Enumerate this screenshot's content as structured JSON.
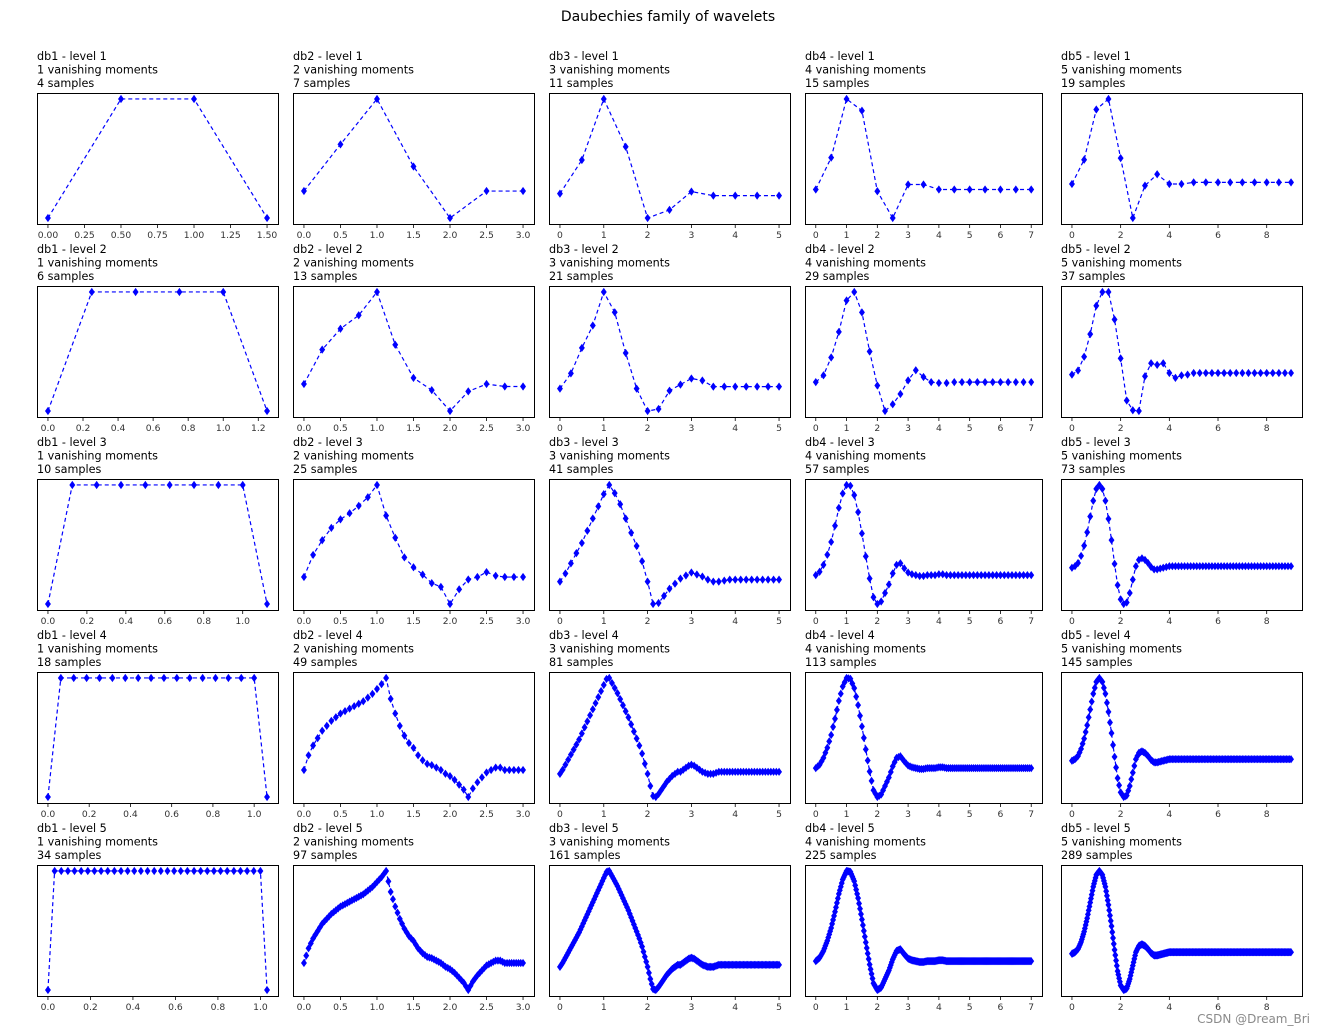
{
  "title": "Daubechies family of wavelets",
  "watermark": "CSDN @Dream_Bri",
  "colors": {
    "series": "#0000ff",
    "frame": "#000000"
  },
  "chart_data": {
    "type": "line",
    "marker": "diamond",
    "linestyle": "dashed",
    "grid": false,
    "rows": 5,
    "cols": 5,
    "subplots": [
      {
        "name": "db1",
        "level": 1,
        "title_lines": [
          "db1 - level 1",
          "1 vanishing moments",
          "4 samples"
        ],
        "samples": 4,
        "xticks": [
          "0.00",
          "0.25",
          "0.50",
          "0.75",
          "1.00",
          "1.25",
          "1.50"
        ],
        "xlim": [
          -0.08,
          1.58
        ],
        "y": [
          0,
          1,
          1,
          0
        ]
      },
      {
        "name": "db2",
        "level": 1,
        "title_lines": [
          "db2 - level 1",
          "2 vanishing moments",
          "7 samples"
        ],
        "samples": 7,
        "xticks": [
          "0.0",
          "0.5",
          "1.0",
          "1.5",
          "2.0",
          "2.5",
          "3.0"
        ],
        "xlim": [
          -0.15,
          3.15
        ],
        "y": [
          0.1,
          0.48,
          0.85,
          0.3,
          -0.12,
          0.1,
          0.1
        ]
      },
      {
        "name": "db3",
        "level": 1,
        "title_lines": [
          "db3 - level 1",
          "3 vanishing moments",
          "11 samples"
        ],
        "samples": 11,
        "xticks": [
          "0",
          "1",
          "2",
          "3",
          "4",
          "5"
        ],
        "xlim": [
          -0.25,
          5.25
        ],
        "y": [
          0.12,
          0.45,
          1.05,
          0.58,
          -0.12,
          -0.04,
          0.14,
          0.1,
          0.1,
          0.1,
          0.1
        ]
      },
      {
        "name": "db4",
        "level": 1,
        "title_lines": [
          "db4 - level 1",
          "4 vanishing moments",
          "15 samples"
        ],
        "samples": 15,
        "xticks": [
          "0",
          "1",
          "2",
          "3",
          "4",
          "5",
          "6",
          "7"
        ],
        "xlim": [
          -0.35,
          7.35
        ],
        "y": [
          0.06,
          0.44,
          1.14,
          1.0,
          0.04,
          -0.28,
          0.12,
          0.12,
          0.06,
          0.06,
          0.06,
          0.06,
          0.06,
          0.06,
          0.06
        ]
      },
      {
        "name": "db5",
        "level": 1,
        "title_lines": [
          "db5 - level 1",
          "5 vanishing moments",
          "19 samples"
        ],
        "samples": 19,
        "xticks": [
          "0",
          "2",
          "4",
          "6",
          "8"
        ],
        "xlim": [
          -0.45,
          9.45
        ],
        "y": [
          0.1,
          0.4,
          1.02,
          1.15,
          0.42,
          -0.32,
          0.08,
          0.22,
          0.1,
          0.1,
          0.12,
          0.12,
          0.12,
          0.12,
          0.12,
          0.12,
          0.12,
          0.12,
          0.12
        ]
      },
      {
        "name": "db1",
        "level": 2,
        "title_lines": [
          "db1 - level 2",
          "1 vanishing moments",
          "6 samples"
        ],
        "samples": 6,
        "xticks": [
          "0.0",
          "0.2",
          "0.4",
          "0.6",
          "0.8",
          "1.0",
          "1.2"
        ],
        "xlim": [
          -0.06,
          1.31
        ],
        "y": [
          0,
          1,
          1,
          1,
          1,
          0
        ]
      },
      {
        "name": "db2",
        "level": 2,
        "title_lines": [
          "db2 - level 2",
          "2 vanishing moments",
          "13 samples"
        ],
        "samples": 13,
        "xticks": [
          "0.0",
          "0.5",
          "1.0",
          "1.5",
          "2.0",
          "2.5",
          "3.0"
        ],
        "xlim": [
          -0.15,
          3.15
        ],
        "y": [
          0.1,
          0.38,
          0.55,
          0.66,
          0.85,
          0.42,
          0.15,
          0.05,
          -0.12,
          0.04,
          0.1,
          0.08,
          0.08
        ]
      },
      {
        "name": "db3",
        "level": 2,
        "title_lines": [
          "db3 - level 2",
          "3 vanishing moments",
          "21 samples"
        ],
        "samples": 21,
        "xticks": [
          "0",
          "1",
          "2",
          "3",
          "4",
          "5"
        ],
        "xlim": [
          -0.25,
          5.25
        ],
        "y": [
          0.1,
          0.25,
          0.5,
          0.72,
          1.05,
          0.85,
          0.45,
          0.1,
          -0.12,
          -0.1,
          0.08,
          0.14,
          0.2,
          0.18,
          0.12,
          0.12,
          0.12,
          0.12,
          0.12,
          0.12,
          0.12
        ]
      },
      {
        "name": "db4",
        "level": 2,
        "title_lines": [
          "db4 - level 2",
          "4 vanishing moments",
          "29 samples"
        ],
        "samples": 29,
        "xticks": [
          "0",
          "1",
          "2",
          "3",
          "4",
          "5",
          "6",
          "7"
        ],
        "xlim": [
          -0.35,
          7.35
        ],
        "y": [
          0.06,
          0.14,
          0.35,
          0.65,
          1.02,
          1.12,
          0.88,
          0.42,
          0.02,
          -0.28,
          -0.2,
          -0.08,
          0.08,
          0.2,
          0.12,
          0.06,
          0.05,
          0.05,
          0.06,
          0.06,
          0.06,
          0.06,
          0.06,
          0.06,
          0.06,
          0.06,
          0.06,
          0.06,
          0.06
        ]
      },
      {
        "name": "db5",
        "level": 2,
        "title_lines": [
          "db5 - level 2",
          "5 vanishing moments",
          "37 samples"
        ],
        "samples": 37,
        "xticks": [
          "0",
          "2",
          "4",
          "6",
          "8"
        ],
        "xlim": [
          -0.45,
          9.45
        ],
        "y": [
          0.1,
          0.15,
          0.32,
          0.6,
          0.95,
          1.12,
          1.12,
          0.78,
          0.3,
          -0.22,
          -0.34,
          -0.35,
          0.08,
          0.24,
          0.22,
          0.24,
          0.12,
          0.06,
          0.09,
          0.1,
          0.12,
          0.12,
          0.12,
          0.12,
          0.12,
          0.12,
          0.12,
          0.12,
          0.12,
          0.12,
          0.12,
          0.12,
          0.12,
          0.12,
          0.12,
          0.12,
          0.12
        ]
      },
      {
        "name": "db1",
        "level": 3,
        "title_lines": [
          "db1 - level 3",
          "1 vanishing moments",
          "10 samples"
        ],
        "samples": 10,
        "xticks": [
          "0.0",
          "0.2",
          "0.4",
          "0.6",
          "0.8",
          "1.0"
        ],
        "xlim": [
          -0.06,
          1.19
        ],
        "y": [
          0,
          1,
          1,
          1,
          1,
          1,
          1,
          1,
          1,
          0
        ]
      },
      {
        "name": "db2",
        "level": 3,
        "title_lines": [
          "db2 - level 3",
          "2 vanishing moments",
          "25 samples"
        ],
        "samples": 25,
        "xticks": [
          "0.0",
          "0.5",
          "1.0",
          "1.5",
          "2.0",
          "2.5",
          "3.0"
        ],
        "xlim": [
          -0.15,
          3.15
        ],
        "y": [
          0.1,
          0.28,
          0.4,
          0.5,
          0.57,
          0.62,
          0.68,
          0.75,
          0.85,
          0.6,
          0.42,
          0.26,
          0.18,
          0.12,
          0.05,
          0.02,
          -0.12,
          0.0,
          0.08,
          0.1,
          0.14,
          0.11,
          0.1,
          0.1,
          0.1
        ]
      },
      {
        "name": "db3",
        "level": 3,
        "title_lines": [
          "db3 - level 3",
          "3 vanishing moments",
          "41 samples"
        ],
        "samples": 41,
        "xticks": [
          "0",
          "1",
          "2",
          "3",
          "4",
          "5"
        ],
        "xlim": [
          -0.25,
          5.25
        ],
        "y": [
          0.1,
          0.18,
          0.28,
          0.38,
          0.48,
          0.6,
          0.72,
          0.84,
          0.96,
          1.05,
          0.97,
          0.86,
          0.72,
          0.58,
          0.45,
          0.3,
          0.1,
          -0.12,
          -0.11,
          -0.04,
          0.03,
          0.08,
          0.13,
          0.16,
          0.19,
          0.17,
          0.15,
          0.12,
          0.1,
          0.1,
          0.11,
          0.12,
          0.12,
          0.12,
          0.12,
          0.12,
          0.12,
          0.12,
          0.12,
          0.12,
          0.12
        ]
      },
      {
        "name": "db4",
        "level": 3,
        "title_lines": [
          "db4 - level 3",
          "4 vanishing moments",
          "57 samples"
        ],
        "samples": 57,
        "xticks": [
          "0",
          "1",
          "2",
          "3",
          "4",
          "5",
          "6",
          "7"
        ],
        "xlim": [
          -0.35,
          7.35
        ],
        "y": [
          0.06,
          0.1,
          0.18,
          0.3,
          0.45,
          0.64,
          0.85,
          1.02,
          1.12,
          1.11,
          1.0,
          0.8,
          0.55,
          0.28,
          0.02,
          -0.2,
          -0.28,
          -0.25,
          -0.15,
          -0.05,
          0.08,
          0.18,
          0.2,
          0.14,
          0.09,
          0.07,
          0.06,
          0.05,
          0.05,
          0.06,
          0.06,
          0.06,
          0.07,
          0.07,
          0.06,
          0.06,
          0.06,
          0.06,
          0.06,
          0.06,
          0.06,
          0.06,
          0.06,
          0.06,
          0.06,
          0.06,
          0.06,
          0.06,
          0.06,
          0.06,
          0.06,
          0.06,
          0.06,
          0.06,
          0.06,
          0.06,
          0.06
        ]
      },
      {
        "name": "db5",
        "level": 3,
        "title_lines": [
          "db5 - level 3",
          "5 vanishing moments",
          "73 samples"
        ],
        "samples": 73,
        "xticks": [
          "0",
          "2",
          "4",
          "6",
          "8"
        ],
        "xlim": [
          -0.45,
          9.45
        ],
        "y": [
          0.1,
          0.12,
          0.16,
          0.25,
          0.38,
          0.55,
          0.75,
          0.95,
          1.1,
          1.15,
          1.1,
          0.95,
          0.72,
          0.45,
          0.15,
          -0.12,
          -0.3,
          -0.36,
          -0.34,
          -0.22,
          -0.05,
          0.12,
          0.2,
          0.22,
          0.2,
          0.16,
          0.11,
          0.08,
          0.08,
          0.09,
          0.1,
          0.11,
          0.12,
          0.12,
          0.12,
          0.12,
          0.12,
          0.12,
          0.12,
          0.12,
          0.12,
          0.12,
          0.12,
          0.12,
          0.12,
          0.12,
          0.12,
          0.12,
          0.12,
          0.12,
          0.12,
          0.12,
          0.12,
          0.12,
          0.12,
          0.12,
          0.12,
          0.12,
          0.12,
          0.12,
          0.12,
          0.12,
          0.12,
          0.12,
          0.12,
          0.12,
          0.12,
          0.12,
          0.12,
          0.12,
          0.12,
          0.12,
          0.12
        ]
      },
      {
        "name": "db1",
        "level": 4,
        "title_lines": [
          "db1 - level 4",
          "1 vanishing moments",
          "18 samples"
        ],
        "samples": 18,
        "xticks": [
          "0.0",
          "0.2",
          "0.4",
          "0.6",
          "0.8",
          "1.0"
        ],
        "xlim": [
          -0.05,
          1.1
        ],
        "y": [
          0,
          1,
          1,
          1,
          1,
          1,
          1,
          1,
          1,
          1,
          1,
          1,
          1,
          1,
          1,
          1,
          1,
          0
        ]
      },
      {
        "name": "db2",
        "level": 4,
        "title_lines": [
          "db2 - level 4",
          "2 vanishing moments",
          "49 samples"
        ],
        "samples": 49,
        "xticks": [
          "0.0",
          "0.5",
          "1.0",
          "1.5",
          "2.0",
          "2.5",
          "3.0"
        ],
        "xlim": [
          -0.15,
          3.15
        ],
        "y": [
          0.1,
          0.22,
          0.3,
          0.36,
          0.42,
          0.46,
          0.5,
          0.53,
          0.56,
          0.58,
          0.6,
          0.62,
          0.64,
          0.66,
          0.69,
          0.72,
          0.76,
          0.8,
          0.85,
          0.68,
          0.56,
          0.46,
          0.38,
          0.32,
          0.28,
          0.22,
          0.18,
          0.15,
          0.14,
          0.12,
          0.1,
          0.07,
          0.05,
          0.02,
          -0.02,
          -0.06,
          -0.12,
          -0.05,
          0.0,
          0.04,
          0.08,
          0.1,
          0.12,
          0.12,
          0.1,
          0.1,
          0.1,
          0.1,
          0.1
        ]
      },
      {
        "name": "db3",
        "level": 4,
        "title_lines": [
          "db3 - level 4",
          "3 vanishing moments",
          "81 samples"
        ],
        "samples": 81,
        "xticks": [
          "0",
          "1",
          "2",
          "3",
          "4",
          "5"
        ],
        "xlim": [
          -0.25,
          5.25
        ],
        "y": [
          0.1,
          0.14,
          0.19,
          0.24,
          0.29,
          0.34,
          0.39,
          0.44,
          0.5,
          0.56,
          0.62,
          0.68,
          0.74,
          0.8,
          0.86,
          0.92,
          0.98,
          1.04,
          1.05,
          1.0,
          0.95,
          0.9,
          0.84,
          0.78,
          0.72,
          0.66,
          0.59,
          0.52,
          0.45,
          0.38,
          0.3,
          0.2,
          0.1,
          -0.02,
          -0.12,
          -0.13,
          -0.1,
          -0.06,
          -0.02,
          0.02,
          0.05,
          0.08,
          0.1,
          0.12,
          0.12,
          0.14,
          0.16,
          0.18,
          0.19,
          0.18,
          0.16,
          0.14,
          0.12,
          0.11,
          0.1,
          0.1,
          0.1,
          0.11,
          0.12,
          0.12,
          0.12,
          0.12,
          0.12,
          0.12,
          0.12,
          0.12,
          0.12,
          0.12,
          0.12,
          0.12,
          0.12,
          0.12,
          0.12,
          0.12,
          0.12,
          0.12,
          0.12,
          0.12,
          0.12,
          0.12,
          0.12
        ]
      }
    ]
  }
}
